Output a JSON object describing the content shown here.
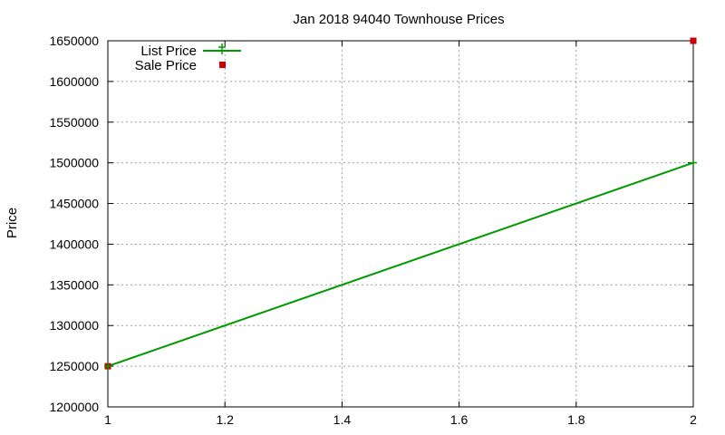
{
  "chart_data": {
    "type": "line",
    "title": "Jan 2018 94040 Townhouse Prices",
    "xlabel": "",
    "ylabel": "Price",
    "xlim": [
      1,
      2
    ],
    "ylim": [
      1200000,
      1650000
    ],
    "x_ticks": [
      "1",
      "1.2",
      "1.4",
      "1.6",
      "1.8",
      "2"
    ],
    "y_ticks": [
      "1200000",
      "1250000",
      "1300000",
      "1350000",
      "1400000",
      "1450000",
      "1500000",
      "1550000",
      "1600000",
      "1650000"
    ],
    "grid": true,
    "legend_position": "top-left",
    "series": [
      {
        "name": "List Price",
        "style": "line-with-points",
        "marker": "plus",
        "color": "#009900",
        "x": [
          1,
          2
        ],
        "y": [
          1250000,
          1500000
        ]
      },
      {
        "name": "Sale Price",
        "style": "points",
        "marker": "square",
        "color": "#cc0000",
        "x": [
          1,
          2
        ],
        "y": [
          1250000,
          1650000
        ]
      }
    ]
  }
}
